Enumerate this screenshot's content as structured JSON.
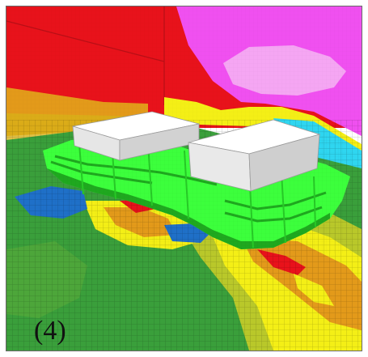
{
  "figure": {
    "panel_label": "(4)"
  },
  "palette": {
    "red": "#e8121b",
    "magenta": "#f050f0",
    "yellow": "#f4ef16",
    "orange": "#e39a1a",
    "green_floor": "#3a9f3b",
    "bright_green": "#3cff3c",
    "cyan": "#2fd6f0",
    "blue": "#1f70c8",
    "white_box": "#f4f4f4"
  }
}
